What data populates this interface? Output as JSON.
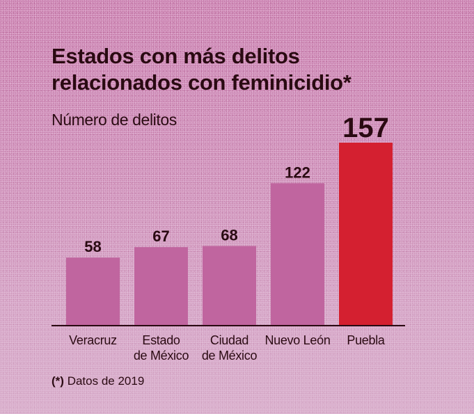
{
  "chart_data": {
    "type": "bar",
    "title": "Estados con más delitos relacionados con feminicidio*",
    "title_lines": [
      "Estados con más delitos",
      "relacionados con feminicidio*"
    ],
    "subtitle": "Número de delitos",
    "xlabel": "",
    "ylabel": "Número de delitos",
    "categories": [
      "Veracruz",
      "Estado de México",
      "Ciudad de México",
      "Nuevo León",
      "Puebla"
    ],
    "category_lines": [
      [
        "Veracruz"
      ],
      [
        "Estado",
        "de México"
      ],
      [
        "Ciudad",
        "de México"
      ],
      [
        "Nuevo León"
      ],
      [
        "Puebla"
      ]
    ],
    "values": [
      58,
      67,
      68,
      122,
      157
    ],
    "data_labels": [
      "58",
      "67",
      "68",
      "122",
      "157"
    ],
    "highlight_index": 4,
    "ylim": [
      0,
      157
    ],
    "grid": false,
    "legend": "none",
    "footnote_marker": "(*)",
    "footnote_text": "Datos de 2019"
  },
  "colors": {
    "bar": "#c0659f",
    "highlight_bar": "#d42030",
    "text": "#2a0a12",
    "axis": "#2a0a12"
  }
}
